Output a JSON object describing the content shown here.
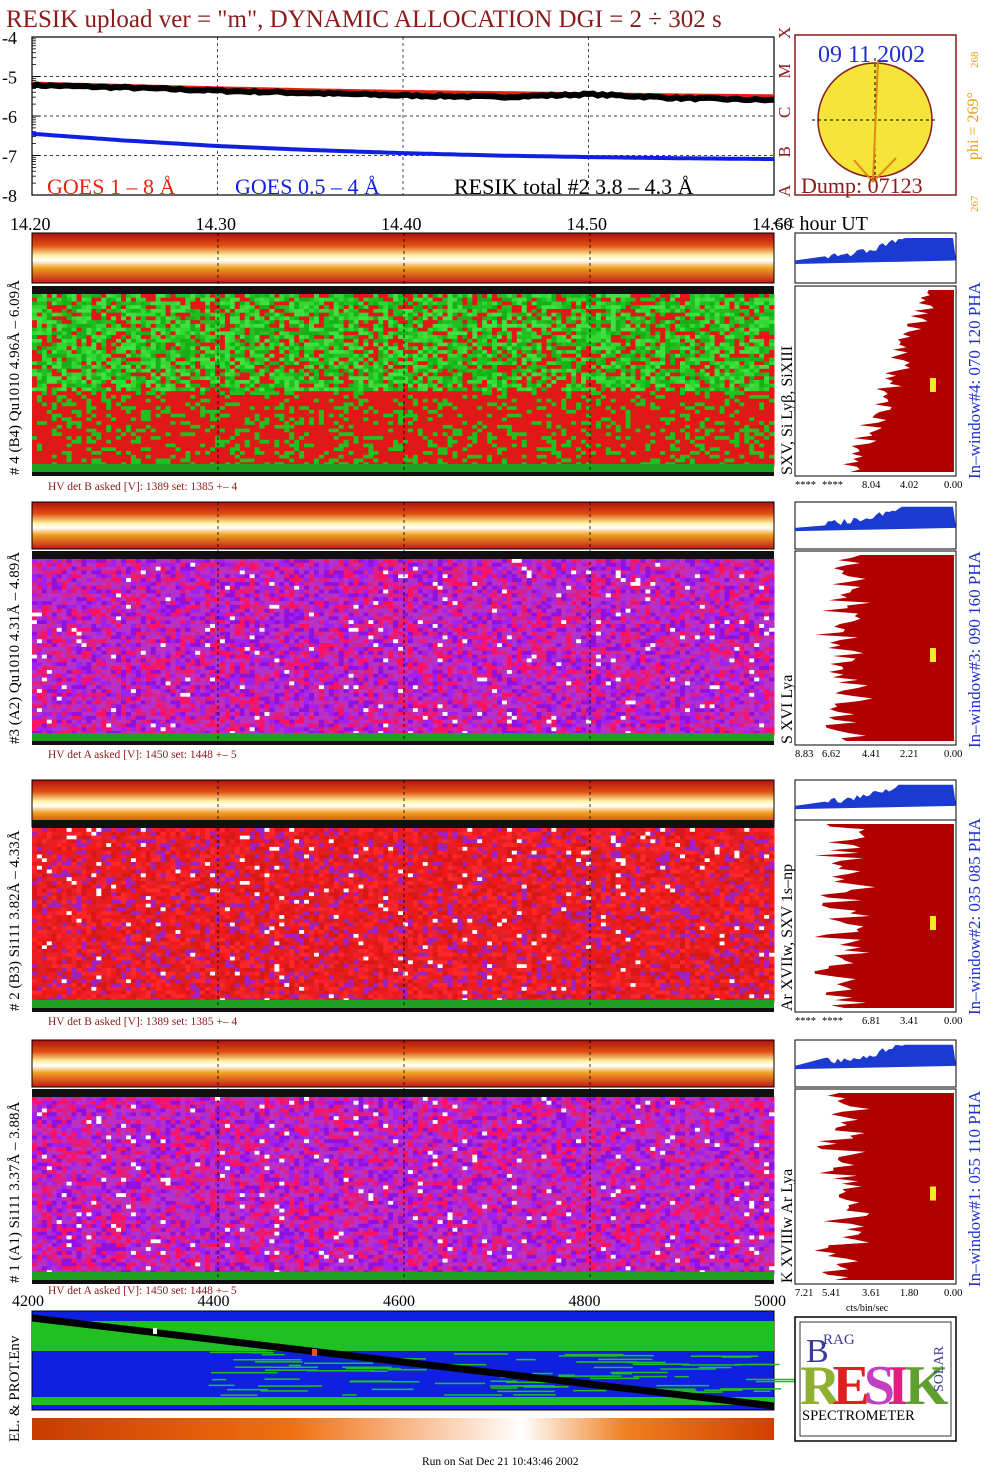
{
  "title": "RESIK upload ver = \"m\", DYNAMIC ALLOCATION  DGI =   2 ÷ 302 s",
  "colors": {
    "goes_long": "#e8200e",
    "goes_short": "#1020e0",
    "resik": "#000000",
    "maroon": "#8b1a1a",
    "gold": "#e0a020",
    "blue_text": "#2030d0"
  },
  "goes_panel": {
    "y_ticks": [
      "-4",
      "-5",
      "-6",
      "-7",
      "-8"
    ],
    "x_ticks": [
      "14.20",
      "14.30",
      "14.40",
      "14.50",
      "14.60"
    ],
    "x_unit": "<< hour UT",
    "class_labels": [
      "A",
      "B",
      "C",
      "M",
      "X"
    ],
    "legend": {
      "long": "GOES 1 – 8 Å",
      "short": "GOES 0.5 – 4 Å",
      "resik": "RESIK total #2  3.8 – 4.3 Å"
    }
  },
  "sun_panel": {
    "date": "09 11 2002",
    "dump": "Dump: 07123",
    "phi": "phi = 269°",
    "phi_sup": "268",
    "phi_low": "267"
  },
  "chart_data": [
    {
      "type": "line",
      "title": "",
      "xlabel": "<< hour UT",
      "x": [
        14.2,
        14.25,
        14.3,
        14.35,
        14.4,
        14.45,
        14.5,
        14.55,
        14.6
      ],
      "ylim": [
        -8,
        -4
      ],
      "xlim": [
        14.2,
        14.6
      ],
      "grid": true,
      "series": [
        {
          "name": "GOES 1 – 8 Å",
          "color": "#e8200e",
          "values": [
            -5.18,
            -5.24,
            -5.3,
            -5.35,
            -5.39,
            -5.42,
            -5.45,
            -5.48,
            -5.5
          ]
        },
        {
          "name": "GOES 0.5 – 4 Å",
          "color": "#1020e0",
          "values": [
            -6.45,
            -6.62,
            -6.76,
            -6.86,
            -6.94,
            -7.0,
            -7.04,
            -7.07,
            -7.09
          ]
        },
        {
          "name": "RESIK total #2  3.8 – 4.3 Å",
          "color": "#000000",
          "values": [
            -5.22,
            -5.28,
            -5.36,
            -5.42,
            -5.48,
            -5.52,
            -5.45,
            -5.55,
            -5.6
          ]
        }
      ]
    }
  ],
  "channels": [
    {
      "id": "ch4",
      "label": "# 4 (B4) Qu1010 4.96Å – 6.09Å",
      "lines": "SXV, Si Lyβ, SiXIII",
      "window": "In–window#4:  070 120 PHA",
      "hv": "HV det B asked [V]:  1389 set:  1385 +–   4",
      "axis": [
        "****",
        "****",
        "8.04",
        "4.02",
        "0.00"
      ],
      "scheme": "green"
    },
    {
      "id": "ch3",
      "label": "#3 (A2) Qu1010  4.31Å – 4.89Å",
      "lines": "S XVI Lya",
      "window": "In–window#3:  090 160 PHA",
      "hv": "HV det A asked [V]:  1450 set:  1448 +–    5",
      "axis": [
        "8.83",
        "6.62",
        "4.41",
        "2.21",
        "0.00"
      ],
      "scheme": "violet"
    },
    {
      "id": "ch2",
      "label": "# 2 (B3) Si111  3.82Å – 4.33Å",
      "lines": "Ar XVIIw,  SXV 1s–np",
      "window": "In–window#2:  035 085 PHA",
      "hv": "HV det B asked [V]:  1389 set:  1385 +–   4",
      "axis": [
        "****",
        "****",
        "6.81",
        "3.41",
        "0.00"
      ],
      "scheme": "red"
    },
    {
      "id": "ch1",
      "label": "# 1 (A1) Si111  3.37Å – 3.88Å",
      "lines": "K XVIIIw  Ar Lya",
      "window": "In–window#1:  055 110 PHA",
      "hv": "HV det A asked [V]:  1450 set:  1448 +–    5",
      "axis": [
        "7.21",
        "5.41",
        "3.61",
        "1.80",
        "0.00"
      ],
      "scheme": "violet"
    }
  ],
  "hist_unit": "cts/bin/sec",
  "bottom": {
    "x_ticks": [
      "4200",
      "4400",
      "4600",
      "4800",
      "5000"
    ],
    "label": "EL. & PROT.Env"
  },
  "logo": {
    "word_b": "B",
    "word_rag": "RAG",
    "word_resik": "RESIK",
    "word_solar": "SOLAR",
    "footer": "SPECTROMETER"
  },
  "footer": "Run on Sat Dec 21 10:43:46 2002"
}
